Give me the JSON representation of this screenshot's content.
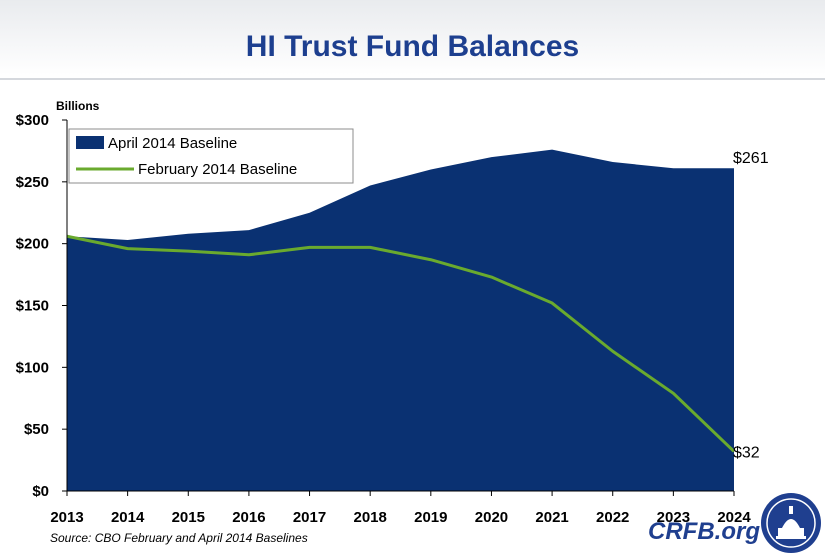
{
  "header": {
    "title": "HI Trust Fund Balances"
  },
  "chart_data": {
    "type": "area",
    "title": "HI Trust Fund Balances",
    "ylabel": "Billions",
    "xlabel": "",
    "categories": [
      "2013",
      "2014",
      "2015",
      "2016",
      "2017",
      "2018",
      "2019",
      "2020",
      "2021",
      "2022",
      "2023",
      "2024"
    ],
    "ylim": [
      0,
      300
    ],
    "yticks": [
      0,
      50,
      100,
      150,
      200,
      250,
      300
    ],
    "ytick_labels": [
      "$0",
      "$50",
      "$100",
      "$150",
      "$200",
      "$250",
      "$300"
    ],
    "grid": false,
    "legend_position": "top-left",
    "series": [
      {
        "name": "April 2014 Baseline",
        "kind": "area",
        "color": "#0a3172",
        "values": [
          206,
          203,
          208,
          211,
          225,
          247,
          260,
          270,
          276,
          266,
          261,
          261
        ]
      },
      {
        "name": "February 2014 Baseline",
        "kind": "line",
        "color": "#6aaa2e",
        "values": [
          206,
          196,
          194,
          191,
          197,
          197,
          187,
          173,
          152,
          113,
          79,
          32
        ]
      }
    ],
    "annotations": [
      {
        "series": 0,
        "index": 11,
        "text": "$261"
      },
      {
        "series": 1,
        "index": 11,
        "text": "$32"
      }
    ]
  },
  "footer": {
    "source": "Source: CBO February and April 2014  Baselines",
    "brand": "CRFB.org"
  }
}
